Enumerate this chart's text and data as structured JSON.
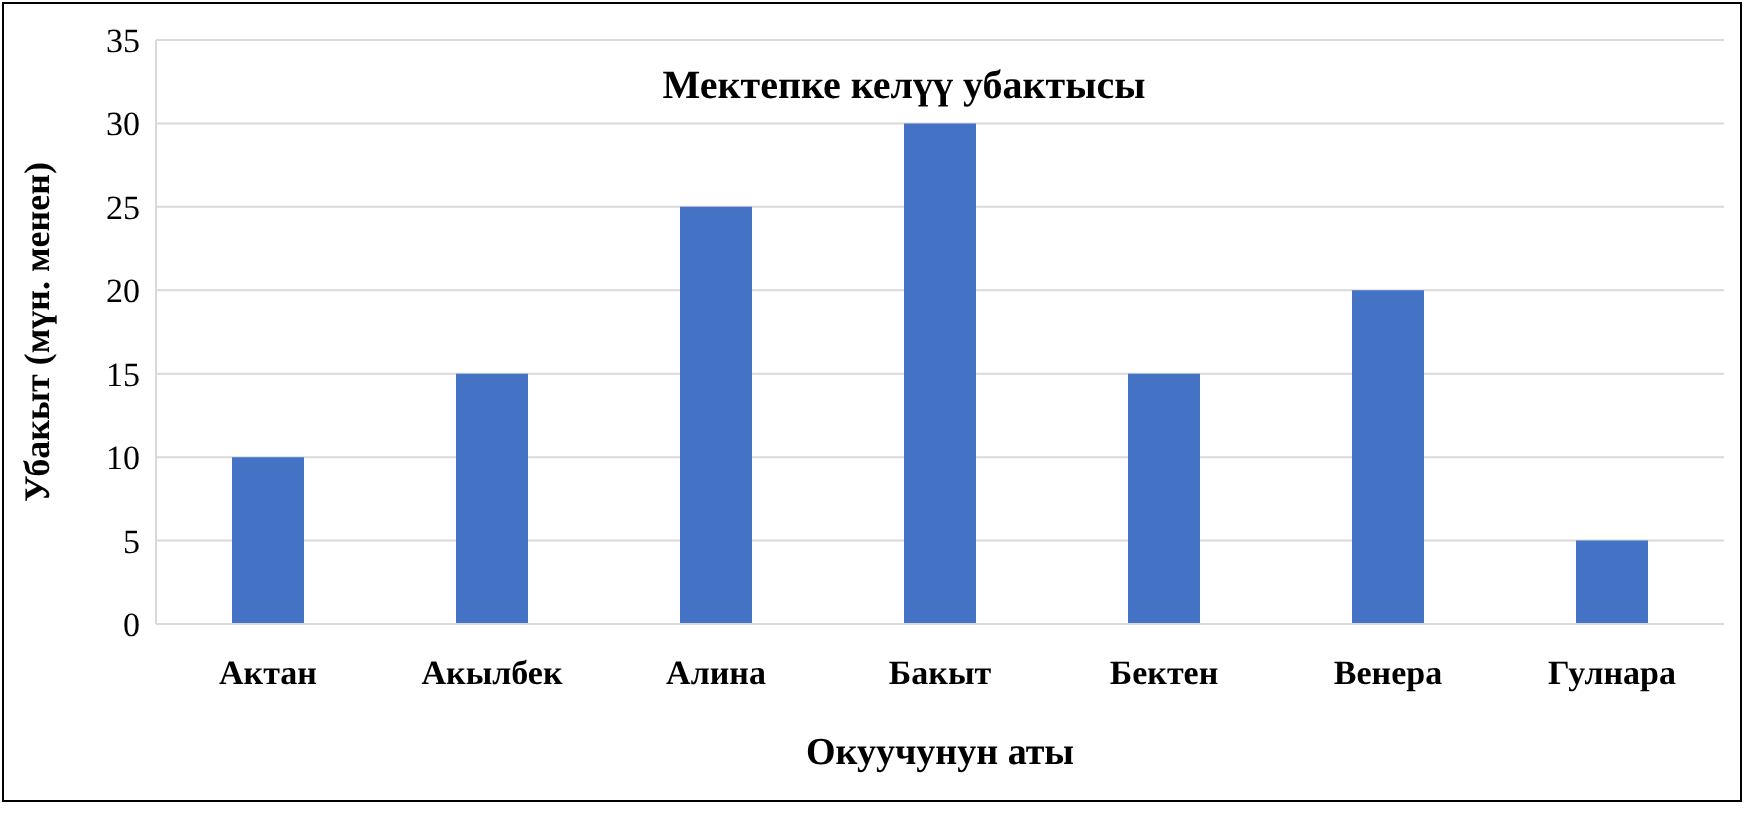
{
  "chart_data": {
    "type": "bar",
    "title": "Мектепке келүү убактысы",
    "xlabel": "Окуучунун аты",
    "ylabel": "Убакыт (мүн. менен)",
    "categories": [
      "Актан",
      "Акылбек",
      "Алина",
      "Бакыт",
      "Бектен",
      "Венера",
      "Гулнара"
    ],
    "values": [
      10,
      15,
      25,
      30,
      15,
      20,
      5
    ],
    "color": "#4472c4",
    "ylim": [
      0,
      35
    ],
    "yticks": [
      0,
      5,
      10,
      15,
      20,
      25,
      30,
      35
    ],
    "grid": "y",
    "legend": false
  }
}
